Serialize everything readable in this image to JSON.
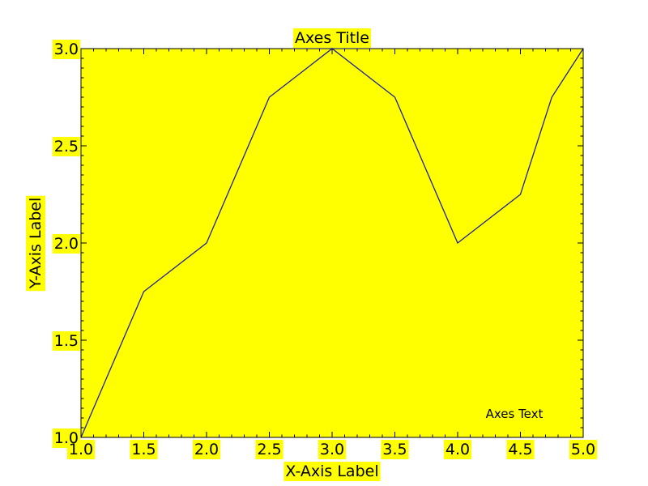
{
  "chart_data": {
    "type": "line",
    "title": "Axes Title",
    "xlabel": "X-Axis Label",
    "ylabel": "Y-Axis Label",
    "annotation": "Axes Text",
    "xlim": [
      1.0,
      5.0
    ],
    "ylim": [
      1.0,
      3.0
    ],
    "x_ticks": [
      "1.0",
      "1.5",
      "2.0",
      "2.5",
      "3.0",
      "3.5",
      "4.0",
      "4.5",
      "5.0"
    ],
    "y_ticks": [
      "1.0",
      "1.5",
      "2.0",
      "2.5",
      "3.0"
    ],
    "grid": false,
    "series": [
      {
        "x": [
          1.0,
          1.5,
          2.0,
          2.5,
          3.0,
          3.5,
          4.0,
          4.5,
          4.75,
          5.0
        ],
        "y": [
          1.0,
          1.75,
          2.0,
          2.75,
          3.0,
          2.75,
          2.0,
          2.25,
          2.75,
          3.0
        ],
        "color": "#1f1f9f"
      }
    ],
    "colors": {
      "plot_background": "#ffff00",
      "label_background": "#ffff00",
      "axes_edge": "#000000"
    }
  }
}
